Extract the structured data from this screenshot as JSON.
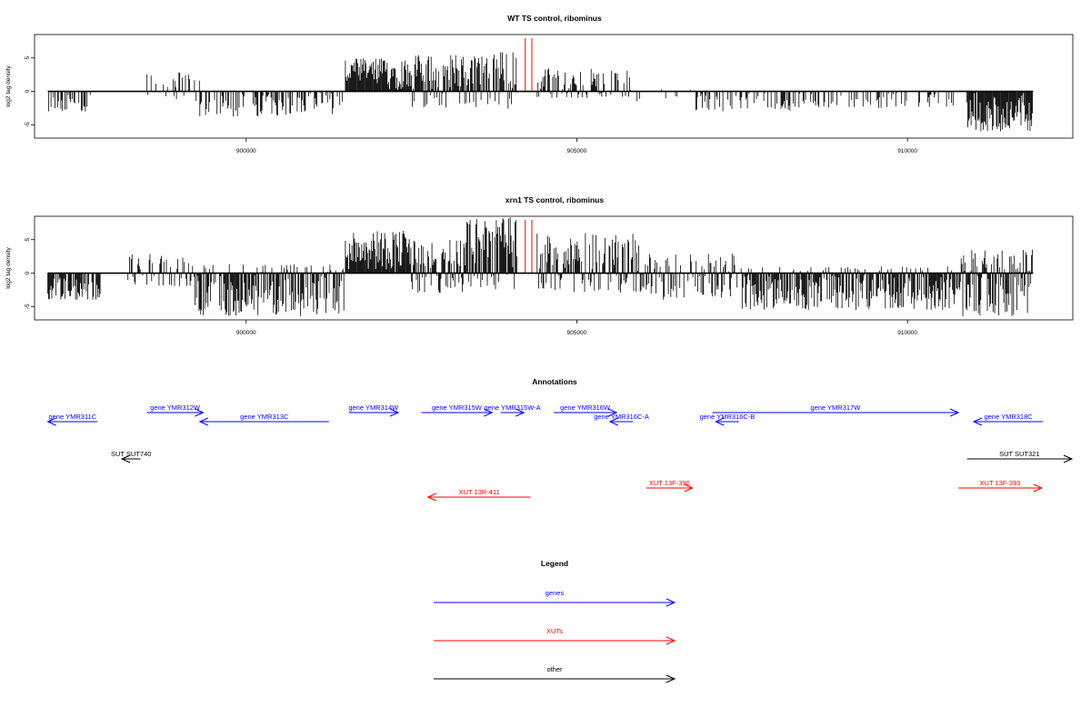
{
  "chart_data": [
    {
      "type": "bar",
      "title": "WT TS control, ribominus",
      "xlabel": "",
      "ylabel": "log2 tag density",
      "xlim": [
        896800,
        912500
      ],
      "ylim": [
        -7,
        8.5
      ],
      "x_ticks": [
        900000,
        905000,
        910000
      ],
      "x_tick_labels": [
        "900000",
        "905000",
        "910000"
      ],
      "y_ticks": [
        -5,
        0,
        5
      ],
      "y_tick_labels": [
        "-5",
        "0",
        "5"
      ],
      "line_color": "#000000",
      "marker_color": "#ff0000",
      "markers_x": [
        904220,
        904320
      ],
      "segments": [
        {
          "x": [
            897000,
            897650
          ],
          "min": -3.0,
          "max": 0.0,
          "density": 0.45
        },
        {
          "x": [
            898500,
            899300
          ],
          "min": -1.5,
          "max": 3.0,
          "density": 0.35
        },
        {
          "x": [
            899300,
            901500
          ],
          "min": -3.8,
          "max": 0.0,
          "density": 0.5
        },
        {
          "x": [
            901500,
            902500
          ],
          "min": -0.5,
          "max": 5.0,
          "density": 1.0
        },
        {
          "x": [
            902500,
            903700
          ],
          "min": -2.5,
          "max": 5.5,
          "density": 0.95
        },
        {
          "x": [
            903700,
            904100
          ],
          "min": -3.0,
          "max": 6.0,
          "density": 0.85
        },
        {
          "x": [
            904400,
            905800
          ],
          "min": -1.0,
          "max": 3.5,
          "density": 0.7
        },
        {
          "x": [
            905800,
            906800
          ],
          "min": -1.5,
          "max": 1.0,
          "density": 0.15
        },
        {
          "x": [
            906800,
            908500
          ],
          "min": -3.0,
          "max": 0.5,
          "density": 0.35
        },
        {
          "x": [
            908500,
            910700
          ],
          "min": -2.5,
          "max": 0.5,
          "density": 0.3
        },
        {
          "x": [
            910900,
            911900
          ],
          "min": -6.0,
          "max": 0.5,
          "density": 1.0
        }
      ]
    },
    {
      "type": "bar",
      "title": "xrn1 TS control, ribominus",
      "xlabel": "",
      "ylabel": "log2 tag density",
      "xlim": [
        896800,
        912500
      ],
      "ylim": [
        -7,
        8.5
      ],
      "x_ticks": [
        900000,
        905000,
        910000
      ],
      "x_tick_labels": [
        "900000",
        "905000",
        "910000"
      ],
      "y_ticks": [
        -5,
        0,
        5
      ],
      "y_tick_labels": [
        "-5",
        "0",
        "5"
      ],
      "line_color": "#000000",
      "marker_color": "#ff0000",
      "markers_x": [
        904220,
        904320
      ],
      "segments": [
        {
          "x": [
            897000,
            897800
          ],
          "min": -4.0,
          "max": 0.0,
          "density": 0.8
        },
        {
          "x": [
            898200,
            899200
          ],
          "min": -2.0,
          "max": 3.0,
          "density": 0.5
        },
        {
          "x": [
            899200,
            901500
          ],
          "min": -6.5,
          "max": 1.5,
          "density": 0.85
        },
        {
          "x": [
            901500,
            902500
          ],
          "min": -0.5,
          "max": 6.5,
          "density": 1.0
        },
        {
          "x": [
            902500,
            903300
          ],
          "min": -3.0,
          "max": 5.0,
          "density": 0.95
        },
        {
          "x": [
            903300,
            904100
          ],
          "min": -2.5,
          "max": 8.5,
          "density": 1.0
        },
        {
          "x": [
            904400,
            906000
          ],
          "min": -3.0,
          "max": 6.0,
          "density": 0.8
        },
        {
          "x": [
            906000,
            907500
          ],
          "min": -4.0,
          "max": 3.0,
          "density": 0.6
        },
        {
          "x": [
            907500,
            910800
          ],
          "min": -5.5,
          "max": 1.0,
          "density": 0.85
        },
        {
          "x": [
            910800,
            911900
          ],
          "min": -6.5,
          "max": 3.5,
          "density": 1.0
        }
      ]
    }
  ],
  "annotations": {
    "title": "Annotations",
    "xlim": [
      896800,
      912500
    ],
    "features": [
      {
        "label": "gene YMR311C",
        "start": 897000,
        "end": 897750,
        "strand": "-",
        "row": 1,
        "color": "#0000ff"
      },
      {
        "label": "gene YMR312W",
        "start": 898500,
        "end": 899350,
        "strand": "+",
        "row": 0,
        "color": "#0000ff"
      },
      {
        "label": "gene YMR313C",
        "start": 899300,
        "end": 901250,
        "strand": "-",
        "row": 1,
        "color": "#0000ff"
      },
      {
        "label": "gene YMR314W",
        "start": 901550,
        "end": 902300,
        "strand": "+",
        "row": 0,
        "color": "#0000ff"
      },
      {
        "label": "gene YMR315W",
        "start": 902650,
        "end": 903720,
        "strand": "+",
        "row": 0,
        "color": "#0000ff"
      },
      {
        "label": "gene YMR315W-A",
        "start": 903850,
        "end": 904200,
        "strand": "+",
        "row": 0,
        "color": "#0000ff"
      },
      {
        "label": "gene YMR316W",
        "start": 904650,
        "end": 905600,
        "strand": "+",
        "row": 0,
        "color": "#0000ff"
      },
      {
        "label": "gene YMR316C-A",
        "start": 905500,
        "end": 905850,
        "strand": "-",
        "row": 1,
        "color": "#0000ff"
      },
      {
        "label": "gene YMR316C-B",
        "start": 907100,
        "end": 907450,
        "strand": "-",
        "row": 1,
        "color": "#0000ff"
      },
      {
        "label": "gene YMR317W",
        "start": 907050,
        "end": 910770,
        "strand": "+",
        "row": 0,
        "color": "#0000ff"
      },
      {
        "label": "gene YMR318C",
        "start": 911000,
        "end": 912050,
        "strand": "-",
        "row": 1,
        "color": "#0000ff"
      },
      {
        "label": "SUT SUT740",
        "start": 898120,
        "end": 898400,
        "strand": "-",
        "row": 2,
        "color": "#000000"
      },
      {
        "label": "SUT SUT321",
        "start": 910900,
        "end": 912500,
        "strand": "+",
        "row": 2,
        "color": "#000000"
      },
      {
        "label": "XUT 13R-411",
        "start": 902750,
        "end": 904300,
        "strand": "-",
        "row": 4,
        "color": "#ff0000"
      },
      {
        "label": "XUT 13F-390",
        "start": 906050,
        "end": 906750,
        "strand": "+",
        "row": 3,
        "color": "#ff0000"
      },
      {
        "label": "XUT 13F-393",
        "start": 910770,
        "end": 912030,
        "strand": "+",
        "row": 3,
        "color": "#ff0000"
      }
    ]
  },
  "legend": {
    "title": "Legend",
    "items": [
      {
        "label": "genes",
        "color": "#0000ff"
      },
      {
        "label": "XUTs",
        "color": "#ff0000"
      },
      {
        "label": "other",
        "color": "#000000"
      }
    ]
  }
}
